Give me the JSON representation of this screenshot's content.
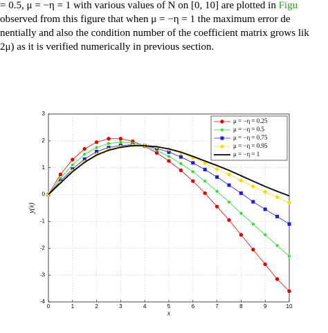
{
  "paragraph": [
    "= 0.5,  μ = −η = 1 with various values of N on [0, 10] are plotted in ",
    "observed from this figure that when μ = −η = 1 the maximum error de",
    "nentially and also the condition number of the coefficient matrix grows lik",
    "2μ) as it is verified numerically in previous section."
  ],
  "paragraph_link": "Figu",
  "chart_data": {
    "type": "line",
    "x_label": "x",
    "y_label": "y(x)",
    "x": [
      0,
      0.5,
      1,
      1.5,
      2,
      2.5,
      3,
      3.5,
      4,
      4.5,
      5,
      5.5,
      6,
      6.5,
      7,
      7.5,
      8,
      8.5,
      9,
      9.5,
      10
    ],
    "series": [
      {
        "name": "μ = −η = 0.25",
        "color": "#e00000",
        "marker": "circle",
        "values": [
          0,
          0.75,
          1.3,
          1.7,
          1.95,
          2.08,
          2.08,
          1.98,
          1.8,
          1.55,
          1.25,
          0.9,
          0.5,
          0.05,
          -0.45,
          -0.95,
          -1.5,
          -2.05,
          -2.6,
          -3.15,
          -3.6
        ]
      },
      {
        "name": "μ = −η = 0.5",
        "color": "#22dd22",
        "marker": "star",
        "values": [
          0,
          0.6,
          1.1,
          1.5,
          1.75,
          1.9,
          1.95,
          1.92,
          1.82,
          1.65,
          1.42,
          1.15,
          0.85,
          0.5,
          0.12,
          -0.28,
          -0.7,
          -1.1,
          -1.5,
          -1.9,
          -2.3
        ]
      },
      {
        "name": "μ = −η = 0.75",
        "color": "#1a1ae0",
        "marker": "square",
        "values": [
          0,
          0.5,
          0.95,
          1.32,
          1.6,
          1.75,
          1.83,
          1.85,
          1.82,
          1.72,
          1.58,
          1.4,
          1.18,
          0.93,
          0.65,
          0.35,
          0.05,
          -0.27,
          -0.55,
          -0.82,
          -1.1
        ]
      },
      {
        "name": "μ = −η = 0.95",
        "color": "#f0e000",
        "marker": "diamond",
        "values": [
          0,
          0.45,
          0.88,
          1.22,
          1.5,
          1.68,
          1.78,
          1.83,
          1.82,
          1.77,
          1.68,
          1.55,
          1.38,
          1.18,
          0.95,
          0.75,
          0.52,
          0.3,
          0.1,
          -0.1,
          -0.3
        ]
      },
      {
        "name": "μ = −η = 1",
        "color": "#000000",
        "marker": "none",
        "values": [
          0,
          0.43,
          0.85,
          1.2,
          1.47,
          1.65,
          1.76,
          1.82,
          1.82,
          1.78,
          1.7,
          1.58,
          1.42,
          1.25,
          1.08,
          0.9,
          0.7,
          0.5,
          0.3,
          0.12,
          -0.05
        ]
      }
    ],
    "xlim": [
      0,
      10
    ],
    "xticks": [
      0,
      1,
      2,
      3,
      4,
      5,
      6,
      7,
      8,
      9,
      10
    ],
    "ylim": [
      -4,
      3
    ],
    "yticks": [
      -4,
      -3,
      -2,
      -1,
      0,
      1,
      2,
      3
    ],
    "grid": true,
    "legend": "upper right"
  }
}
